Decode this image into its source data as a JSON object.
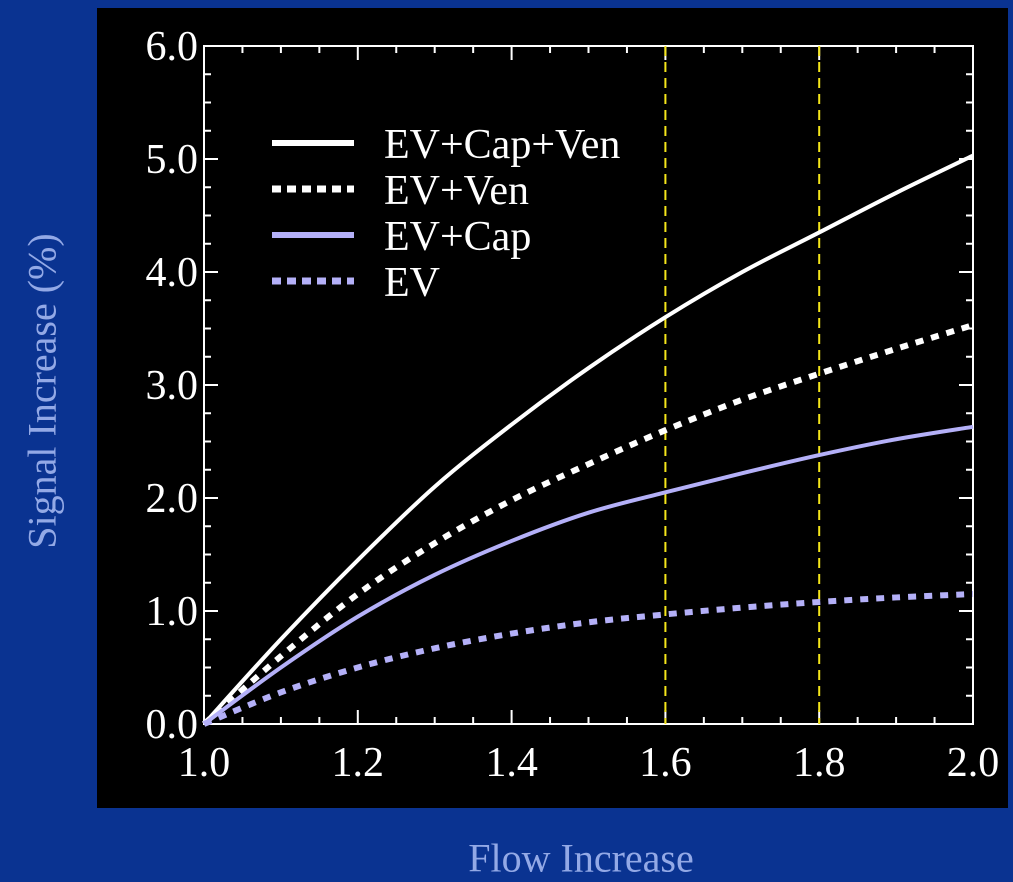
{
  "chart_data": {
    "type": "line",
    "title": "",
    "xlabel": "Flow Increase",
    "ylabel": "Signal Increase (%)",
    "xlim": [
      1.0,
      2.0
    ],
    "ylim": [
      0.0,
      6.0
    ],
    "x_ticks": [
      "1.0",
      "1.2",
      "1.4",
      "1.6",
      "1.8",
      "2.0"
    ],
    "y_ticks": [
      "0.0",
      "1.0",
      "2.0",
      "3.0",
      "4.0",
      "5.0",
      "6.0"
    ],
    "x": [
      1.0,
      1.1,
      1.2,
      1.3,
      1.4,
      1.5,
      1.6,
      1.7,
      1.8,
      1.9,
      2.0
    ],
    "series": [
      {
        "name": "EV+Cap+Ven",
        "color": "#ffffff",
        "dashed": false,
        "values": [
          0.0,
          0.75,
          1.45,
          2.1,
          2.65,
          3.15,
          3.6,
          4.0,
          4.35,
          4.7,
          5.03
        ]
      },
      {
        "name": "EV+Ven",
        "color": "#ffffff",
        "dashed": true,
        "values": [
          0.0,
          0.6,
          1.15,
          1.6,
          1.98,
          2.3,
          2.6,
          2.87,
          3.1,
          3.32,
          3.53
        ]
      },
      {
        "name": "EV+Cap",
        "color": "#b4b0f8",
        "dashed": false,
        "values": [
          0.0,
          0.5,
          0.95,
          1.32,
          1.62,
          1.87,
          2.05,
          2.22,
          2.38,
          2.52,
          2.63
        ]
      },
      {
        "name": "EV",
        "color": "#b4b0f8",
        "dashed": true,
        "values": [
          0.0,
          0.28,
          0.5,
          0.67,
          0.8,
          0.9,
          0.97,
          1.03,
          1.08,
          1.12,
          1.15
        ]
      }
    ],
    "reference_lines_x": [
      1.6,
      1.8
    ],
    "reference_line_color": "#f5e61a",
    "legend_placement": "top-left",
    "grid": false,
    "plot_background": "#000000",
    "axis_color": "#ffffff"
  }
}
